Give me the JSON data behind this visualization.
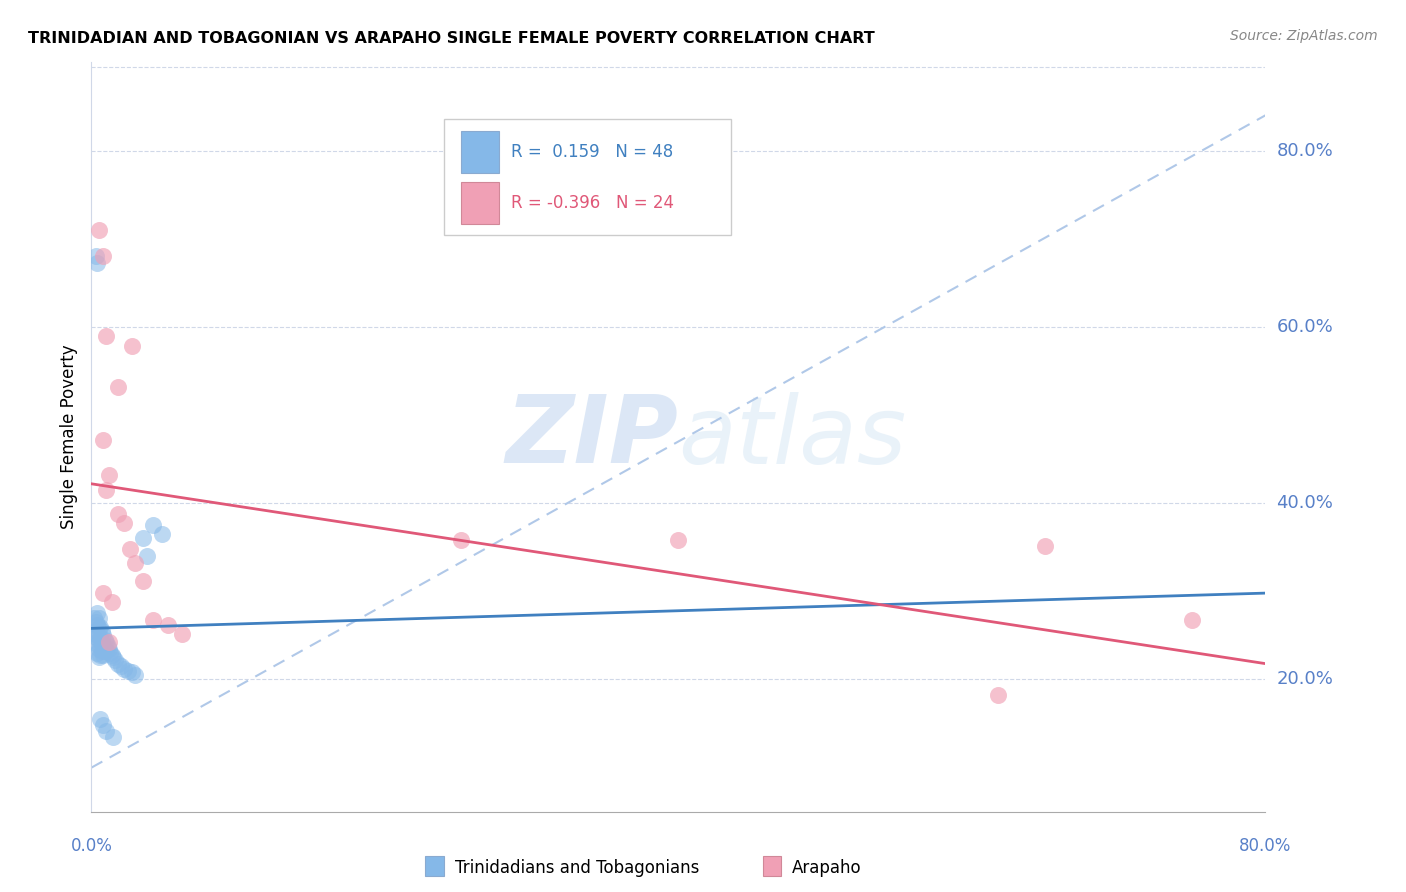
{
  "title": "TRINIDADIAN AND TOBAGONIAN VS ARAPAHO SINGLE FEMALE POVERTY CORRELATION CHART",
  "source": "Source: ZipAtlas.com",
  "ylabel": "Single Female Poverty",
  "watermark_zip": "ZIP",
  "watermark_atlas": "atlas",
  "legend": {
    "blue_r": 0.159,
    "blue_n": 48,
    "pink_r": -0.396,
    "pink_n": 24
  },
  "ytick_labels": [
    "20.0%",
    "40.0%",
    "60.0%",
    "80.0%"
  ],
  "ytick_values": [
    0.2,
    0.4,
    0.6,
    0.8
  ],
  "xtick_labels": [
    "0.0%",
    "80.0%"
  ],
  "xtick_values": [
    0.0,
    0.8
  ],
  "xlim": [
    0.0,
    0.8
  ],
  "ylim": [
    0.05,
    0.9
  ],
  "blue_scatter": [
    [
      0.002,
      0.27
    ],
    [
      0.003,
      0.265
    ],
    [
      0.003,
      0.255
    ],
    [
      0.003,
      0.248
    ],
    [
      0.004,
      0.275
    ],
    [
      0.004,
      0.262
    ],
    [
      0.004,
      0.25
    ],
    [
      0.004,
      0.24
    ],
    [
      0.004,
      0.23
    ],
    [
      0.005,
      0.27
    ],
    [
      0.005,
      0.258
    ],
    [
      0.005,
      0.245
    ],
    [
      0.005,
      0.235
    ],
    [
      0.005,
      0.225
    ],
    [
      0.006,
      0.26
    ],
    [
      0.006,
      0.248
    ],
    [
      0.006,
      0.238
    ],
    [
      0.006,
      0.228
    ],
    [
      0.007,
      0.255
    ],
    [
      0.007,
      0.242
    ],
    [
      0.007,
      0.232
    ],
    [
      0.008,
      0.25
    ],
    [
      0.008,
      0.238
    ],
    [
      0.008,
      0.228
    ],
    [
      0.009,
      0.245
    ],
    [
      0.009,
      0.235
    ],
    [
      0.01,
      0.242
    ],
    [
      0.01,
      0.232
    ],
    [
      0.011,
      0.238
    ],
    [
      0.012,
      0.235
    ],
    [
      0.013,
      0.23
    ],
    [
      0.014,
      0.228
    ],
    [
      0.015,
      0.225
    ],
    [
      0.016,
      0.222
    ],
    [
      0.018,
      0.218
    ],
    [
      0.02,
      0.215
    ],
    [
      0.022,
      0.212
    ],
    [
      0.025,
      0.21
    ],
    [
      0.028,
      0.208
    ],
    [
      0.03,
      0.205
    ],
    [
      0.035,
      0.36
    ],
    [
      0.038,
      0.34
    ],
    [
      0.042,
      0.375
    ],
    [
      0.048,
      0.365
    ],
    [
      0.003,
      0.68
    ],
    [
      0.004,
      0.672
    ],
    [
      0.006,
      0.155
    ],
    [
      0.008,
      0.148
    ],
    [
      0.01,
      0.142
    ],
    [
      0.015,
      0.135
    ]
  ],
  "pink_scatter": [
    [
      0.005,
      0.71
    ],
    [
      0.008,
      0.68
    ],
    [
      0.01,
      0.59
    ],
    [
      0.028,
      0.578
    ],
    [
      0.018,
      0.532
    ],
    [
      0.008,
      0.472
    ],
    [
      0.012,
      0.432
    ],
    [
      0.01,
      0.415
    ],
    [
      0.018,
      0.388
    ],
    [
      0.022,
      0.378
    ],
    [
      0.026,
      0.348
    ],
    [
      0.03,
      0.332
    ],
    [
      0.035,
      0.312
    ],
    [
      0.008,
      0.298
    ],
    [
      0.014,
      0.288
    ],
    [
      0.042,
      0.268
    ],
    [
      0.052,
      0.262
    ],
    [
      0.062,
      0.252
    ],
    [
      0.4,
      0.358
    ],
    [
      0.65,
      0.352
    ],
    [
      0.75,
      0.268
    ],
    [
      0.618,
      0.182
    ],
    [
      0.252,
      0.358
    ],
    [
      0.012,
      0.242
    ]
  ],
  "blue_line": {
    "x0": 0.0,
    "y0": 0.258,
    "x1": 0.8,
    "y1": 0.298
  },
  "pink_line": {
    "x0": 0.0,
    "y0": 0.422,
    "x1": 0.8,
    "y1": 0.218
  },
  "dashed_line": {
    "x0": 0.0,
    "y0": 0.1,
    "x1": 0.8,
    "y1": 0.84
  },
  "blue_color": "#85b8e8",
  "pink_color": "#f0a0b5",
  "blue_line_color": "#4080c0",
  "pink_line_color": "#e05878",
  "dashed_line_color": "#b0c8e8",
  "grid_color": "#d0d8e8",
  "axis_label_color": "#5880c8",
  "tick_label_color": "#5880c8",
  "bottom_legend_label1": "Trinidadians and Tobagonians",
  "bottom_legend_label2": "Arapaho"
}
